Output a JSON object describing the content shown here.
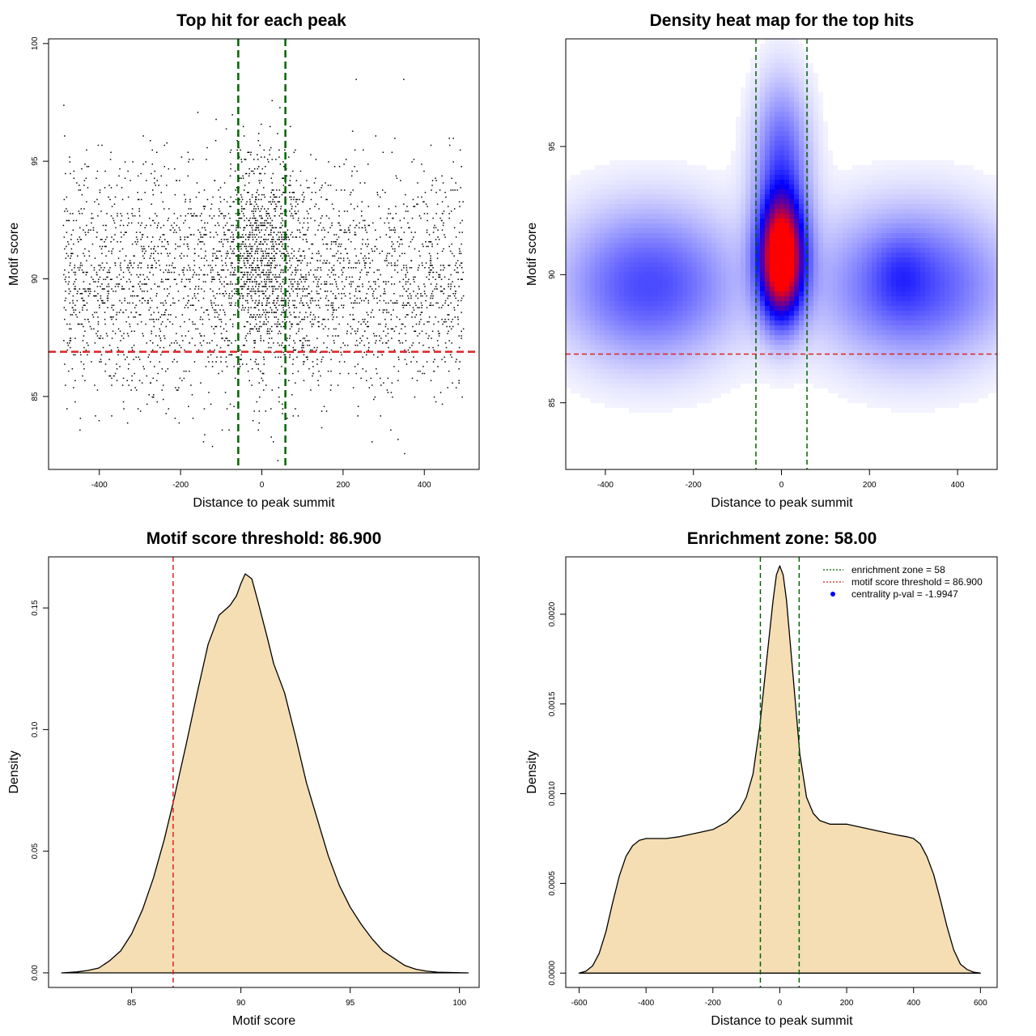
{
  "chart_data": [
    {
      "type": "scatter",
      "title": "Top hit for each peak",
      "xlabel": "Distance to peak summit",
      "ylabel": "Motif score",
      "xlim": [
        -525,
        535
      ],
      "ylim": [
        81.9,
        100.2
      ],
      "xticks": [
        -400,
        -200,
        0,
        200,
        400
      ],
      "yticks": [
        85,
        90,
        95,
        100
      ],
      "x_range": [
        -490,
        495
      ],
      "score_center": 89.9,
      "score_sd": 2.4,
      "n_points": 5200,
      "enrichment_zone": [
        -58,
        58
      ],
      "motif_score_threshold": 86.9,
      "colors": {
        "points": "#000000",
        "zone": "#006400",
        "threshold": "#dd2222"
      }
    },
    {
      "type": "heatmap",
      "title": "Density heat map for the top hits",
      "xlabel": "Distance to peak summit",
      "ylabel": "Motif score",
      "xlim": [
        -490,
        490
      ],
      "ylim": [
        82.4,
        99.2
      ],
      "xticks": [
        -400,
        -200,
        0,
        200,
        400
      ],
      "yticks": [
        85,
        90,
        95
      ],
      "hotspots": [
        {
          "x": 0,
          "y": 90.6,
          "sx": 35,
          "sy": 1.6,
          "w": 1.0
        },
        {
          "x": 0,
          "y": 94.5,
          "sx": 45,
          "sy": 2.2,
          "w": 0.28
        },
        {
          "x": -300,
          "y": 89.6,
          "sx": 140,
          "sy": 2.1,
          "w": 0.32
        },
        {
          "x": 300,
          "y": 89.6,
          "sx": 150,
          "sy": 2.1,
          "w": 0.32
        },
        {
          "x": 270,
          "y": 90.0,
          "sx": 40,
          "sy": 1.0,
          "w": 0.08
        }
      ],
      "enrichment_zone": [
        -58,
        58
      ],
      "motif_score_threshold": 86.9,
      "colors": {
        "low": "#ffffff",
        "mid": "#0000ff",
        "high": "#ff0000",
        "zone": "#006400",
        "threshold": "#dd2222"
      }
    },
    {
      "type": "area",
      "title": "Motif score threshold: 86.900",
      "xlabel": "Motif score",
      "ylabel": "Density",
      "xlim": [
        81.2,
        100.9
      ],
      "ylim": [
        -0.006,
        0.171
      ],
      "xticks": [
        85,
        90,
        95,
        100
      ],
      "yticks": [
        0.0,
        0.05,
        0.1,
        0.15
      ],
      "ytick_labels": [
        "0.00",
        "0.05",
        "0.10",
        "0.15"
      ],
      "x": [
        81.8,
        82.5,
        83.0,
        83.5,
        84.0,
        84.5,
        85.0,
        85.5,
        86.0,
        86.5,
        86.9,
        87.5,
        88.0,
        88.5,
        89.0,
        89.5,
        89.8,
        90.0,
        90.2,
        90.5,
        90.8,
        91.2,
        91.5,
        92.0,
        92.5,
        93.0,
        93.5,
        94.0,
        94.5,
        95.0,
        95.5,
        96.0,
        96.5,
        97.0,
        97.5,
        98.0,
        98.5,
        99.0,
        100.4
      ],
      "y": [
        0.0,
        0.0004,
        0.001,
        0.002,
        0.005,
        0.009,
        0.016,
        0.026,
        0.039,
        0.055,
        0.07,
        0.094,
        0.115,
        0.135,
        0.147,
        0.151,
        0.155,
        0.16,
        0.164,
        0.162,
        0.152,
        0.138,
        0.127,
        0.115,
        0.097,
        0.078,
        0.063,
        0.048,
        0.036,
        0.027,
        0.02,
        0.014,
        0.009,
        0.006,
        0.003,
        0.0015,
        0.0007,
        0.0003,
        0.0
      ],
      "threshold": 86.9,
      "colors": {
        "fill": "#f5deb3",
        "line": "#000000",
        "threshold": "#dd2222"
      }
    },
    {
      "type": "area",
      "title": "Enrichment zone: 58.00",
      "xlabel": "Distance to peak summit",
      "ylabel": "Density",
      "xlim": [
        -640,
        650
      ],
      "ylim": [
        -8e-05,
        0.00232
      ],
      "xticks": [
        -600,
        -400,
        -200,
        0,
        200,
        400,
        600
      ],
      "yticks": [
        0.0,
        0.0005,
        0.001,
        0.0015,
        0.002
      ],
      "ytick_labels": [
        "0.0000",
        "0.0005",
        "0.0010",
        "0.0015",
        "0.0020"
      ],
      "x": [
        -600,
        -580,
        -560,
        -540,
        -520,
        -500,
        -480,
        -460,
        -440,
        -420,
        -400,
        -380,
        -360,
        -340,
        -300,
        -250,
        -200,
        -160,
        -120,
        -100,
        -80,
        -60,
        -40,
        -20,
        -10,
        0,
        10,
        20,
        40,
        60,
        80,
        100,
        120,
        150,
        200,
        250,
        300,
        350,
        380,
        400,
        420,
        440,
        460,
        480,
        500,
        520,
        540,
        560,
        580,
        600
      ],
      "y": [
        0.0,
        1e-05,
        4e-05,
        0.00011,
        0.00023,
        0.00039,
        0.00054,
        0.00065,
        0.00071,
        0.00074,
        0.00075,
        0.00075,
        0.00075,
        0.00075,
        0.00076,
        0.00078,
        0.0008,
        0.00084,
        0.00091,
        0.00098,
        0.00111,
        0.00137,
        0.00173,
        0.00208,
        0.00222,
        0.00227,
        0.00222,
        0.00208,
        0.00165,
        0.00122,
        0.00098,
        0.00089,
        0.00085,
        0.00083,
        0.00083,
        0.00081,
        0.00079,
        0.00077,
        0.00076,
        0.00075,
        0.00072,
        0.00065,
        0.00055,
        0.00041,
        0.00026,
        0.00013,
        5e-05,
        2e-05,
        5e-06,
        0.0
      ],
      "enrichment_zone": [
        -58,
        58
      ],
      "legend": {
        "placement": "top-right",
        "entries": [
          "enrichment zone = 58",
          "motif score threshold = 86.900",
          "centrality p-val = -1.9947"
        ]
      },
      "colors": {
        "fill": "#f5deb3",
        "line": "#000000",
        "zone": "#006400",
        "threshold": "#dd2222",
        "pval": "#0000ff"
      }
    }
  ]
}
